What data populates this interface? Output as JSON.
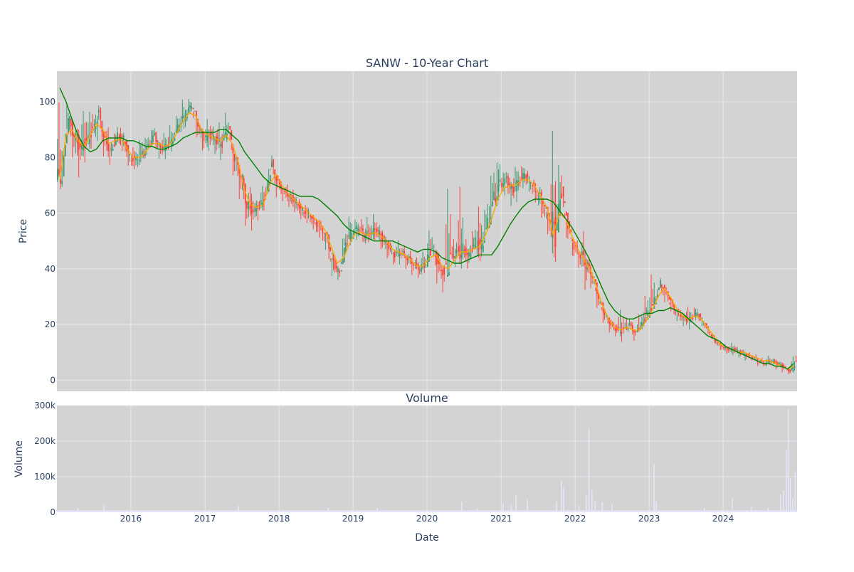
{
  "title": "SANW - 10-Year Chart",
  "colors": {
    "background": "#ffffff",
    "plot_bg": "#d3d3d3",
    "grid": "#eaeaf2",
    "up": "#3d9970",
    "down": "#ff4136",
    "ma_short": "#ffa500",
    "ma_long": "#008000",
    "volume": "#e6e6fa",
    "text": "#2a3f5f"
  },
  "chart_data": [
    {
      "type": "line",
      "subtype": "candlestick",
      "title": "SANW - 10-Year Chart",
      "xlabel": "",
      "ylabel": "Price",
      "xlim": [
        "2015-01-01",
        "2024-12-31"
      ],
      "ylim": [
        -4,
        111
      ],
      "yticks": [
        0,
        20,
        40,
        60,
        80,
        100
      ],
      "grid": true,
      "series": [
        {
          "role": "price",
          "x": [
            "2015-01",
            "2015-02",
            "2015-03",
            "2015-04",
            "2015-05",
            "2015-06",
            "2015-07",
            "2015-08",
            "2015-09",
            "2015-10",
            "2015-11",
            "2015-12",
            "2016-01",
            "2016-02",
            "2016-03",
            "2016-04",
            "2016-05",
            "2016-06",
            "2016-07",
            "2016-08",
            "2016-09",
            "2016-10",
            "2016-11",
            "2016-12",
            "2017-01",
            "2017-02",
            "2017-03",
            "2017-04",
            "2017-05",
            "2017-06",
            "2017-07",
            "2017-08",
            "2017-09",
            "2017-10",
            "2017-11",
            "2017-12",
            "2018-01",
            "2018-02",
            "2018-03",
            "2018-04",
            "2018-05",
            "2018-06",
            "2018-07",
            "2018-08",
            "2018-09",
            "2018-10",
            "2018-11",
            "2018-12",
            "2019-01",
            "2019-02",
            "2019-03",
            "2019-04",
            "2019-05",
            "2019-06",
            "2019-07",
            "2019-08",
            "2019-09",
            "2019-10",
            "2019-11",
            "2019-12",
            "2020-01",
            "2020-02",
            "2020-03",
            "2020-04",
            "2020-05",
            "2020-06",
            "2020-07",
            "2020-08",
            "2020-09",
            "2020-10",
            "2020-11",
            "2020-12",
            "2021-01",
            "2021-02",
            "2021-03",
            "2021-04",
            "2021-05",
            "2021-06",
            "2021-07",
            "2021-08",
            "2021-09",
            "2021-10",
            "2021-11",
            "2021-12",
            "2022-01",
            "2022-02",
            "2022-03",
            "2022-04",
            "2022-05",
            "2022-06",
            "2022-07",
            "2022-08",
            "2022-09",
            "2022-10",
            "2022-11",
            "2022-12",
            "2023-01",
            "2023-02",
            "2023-03",
            "2023-04",
            "2023-05",
            "2023-06",
            "2023-07",
            "2023-08",
            "2023-09",
            "2023-10",
            "2023-11",
            "2023-12",
            "2024-01",
            "2024-02",
            "2024-03",
            "2024-04",
            "2024-05",
            "2024-06",
            "2024-07",
            "2024-08",
            "2024-09",
            "2024-10",
            "2024-11",
            "2024-12"
          ],
          "close": [
            74,
            95,
            88,
            84,
            86,
            90,
            96,
            86,
            82,
            88,
            87,
            80,
            79,
            81,
            84,
            88,
            83,
            84,
            86,
            92,
            95,
            99,
            92,
            87,
            88,
            86,
            85,
            91,
            80,
            74,
            63,
            61,
            63,
            66,
            78,
            71,
            68,
            66,
            64,
            61,
            60,
            57,
            55,
            51,
            42,
            38,
            49,
            53,
            55,
            52,
            53,
            54,
            51,
            48,
            45,
            46,
            44,
            42,
            40,
            42,
            48,
            42,
            38,
            44,
            46,
            47,
            45,
            50,
            48,
            56,
            65,
            70,
            72,
            68,
            71,
            74,
            71,
            68,
            64,
            58,
            52,
            68,
            56,
            48,
            45,
            42,
            38,
            30,
            24,
            20,
            18,
            18,
            20,
            17,
            20,
            24,
            28,
            35,
            32,
            27,
            24,
            22,
            22,
            24,
            21,
            17,
            14,
            12,
            11,
            11,
            10,
            9,
            8,
            7,
            6,
            7,
            6,
            5,
            3,
            7
          ],
          "high": [
            98,
            99,
            95,
            92,
            99,
            100,
            100,
            95,
            91,
            92,
            90,
            86,
            84,
            88,
            89,
            92,
            88,
            89,
            92,
            97,
            101,
            102,
            96,
            91,
            93,
            91,
            92,
            98,
            86,
            79,
            75,
            70,
            66,
            72,
            83,
            77,
            72,
            70,
            68,
            65,
            63,
            60,
            59,
            55,
            47,
            44,
            56,
            60,
            58,
            58,
            58,
            59,
            56,
            52,
            49,
            50,
            48,
            46,
            44,
            47,
            57,
            50,
            44,
            75,
            52,
            68,
            50,
            56,
            62,
            67,
            80,
            82,
            76,
            74,
            78,
            78,
            75,
            72,
            70,
            62,
            87,
            82,
            62,
            53,
            50,
            52,
            44,
            35,
            28,
            24,
            22,
            26,
            24,
            21,
            25,
            32,
            40,
            37,
            35,
            30,
            27,
            25,
            26,
            27,
            24,
            20,
            17,
            14,
            13,
            13,
            12,
            11,
            10,
            9,
            8,
            9,
            8,
            7,
            5,
            11
          ],
          "low": [
            70,
            88,
            80,
            74,
            79,
            82,
            84,
            79,
            77,
            82,
            82,
            75,
            75,
            76,
            79,
            83,
            78,
            80,
            82,
            86,
            88,
            93,
            85,
            81,
            82,
            81,
            80,
            84,
            72,
            65,
            55,
            55,
            57,
            60,
            70,
            65,
            64,
            62,
            60,
            57,
            56,
            53,
            50,
            45,
            34,
            35,
            44,
            47,
            49,
            48,
            48,
            49,
            46,
            43,
            41,
            42,
            40,
            38,
            37,
            38,
            42,
            35,
            32,
            38,
            41,
            42,
            40,
            44,
            42,
            48,
            56,
            62,
            66,
            62,
            64,
            68,
            66,
            62,
            56,
            50,
            40,
            55,
            48,
            43,
            40,
            33,
            33,
            25,
            20,
            17,
            16,
            15,
            17,
            14,
            17,
            21,
            25,
            30,
            27,
            23,
            20,
            19,
            19,
            21,
            18,
            15,
            12,
            10,
            9,
            9,
            8,
            7,
            7,
            5,
            5,
            5,
            4,
            3,
            2,
            2
          ]
        },
        {
          "role": "ma_short",
          "name": "",
          "values": [
            72,
            88,
            90,
            86,
            84,
            88,
            92,
            90,
            85,
            86,
            87,
            83,
            80,
            80,
            82,
            85,
            85,
            84,
            85,
            89,
            93,
            96,
            95,
            90,
            88,
            87,
            86,
            88,
            85,
            78,
            68,
            63,
            62,
            63,
            70,
            74,
            70,
            67,
            65,
            63,
            61,
            59,
            57,
            54,
            48,
            42,
            44,
            49,
            53,
            53,
            52,
            53,
            52,
            50,
            47,
            46,
            45,
            43,
            41,
            41,
            44,
            45,
            41,
            40,
            43,
            46,
            46,
            47,
            48,
            52,
            58,
            65,
            69,
            70,
            70,
            72,
            72,
            70,
            66,
            62,
            52,
            60,
            58,
            52,
            47,
            43,
            40,
            34,
            27,
            22,
            19,
            18,
            19,
            18,
            18,
            21,
            25,
            30,
            33,
            30,
            26,
            23,
            22,
            23,
            22,
            19,
            16,
            13,
            12,
            11,
            10,
            10,
            9,
            8,
            7,
            7,
            6,
            5,
            4,
            5
          ]
        },
        {
          "role": "ma_long",
          "name": "",
          "values": [
            105,
            100,
            94,
            88,
            84,
            82,
            83,
            86,
            87,
            87,
            87,
            86,
            86,
            85,
            84,
            84,
            83,
            83,
            84,
            85,
            87,
            88,
            89,
            89,
            89,
            89,
            90,
            90,
            88,
            86,
            82,
            79,
            76,
            73,
            71,
            70,
            69,
            68,
            67,
            66,
            66,
            66,
            65,
            63,
            61,
            59,
            56,
            54,
            53,
            52,
            51,
            50,
            50,
            50,
            50,
            49,
            48,
            47,
            46,
            47,
            47,
            46,
            44,
            43,
            42,
            42,
            43,
            44,
            45,
            45,
            45,
            48,
            52,
            56,
            59,
            62,
            64,
            65,
            65,
            65,
            64,
            61,
            58,
            55,
            51,
            47,
            43,
            38,
            33,
            28,
            25,
            23,
            22,
            22,
            23,
            24,
            24,
            25,
            25,
            26,
            25,
            24,
            22,
            20,
            18,
            16,
            15,
            14,
            12,
            11,
            10,
            9,
            8,
            7,
            6,
            6,
            5,
            5,
            4,
            6
          ]
        }
      ]
    },
    {
      "type": "bar",
      "title": "Volume",
      "xlabel": "Date",
      "ylabel": "Volume",
      "xticks": [
        "2016",
        "2017",
        "2018",
        "2019",
        "2020",
        "2021",
        "2022",
        "2023",
        "2024"
      ],
      "ytick_labels": [
        "0",
        "100k",
        "200k",
        "300k"
      ],
      "yticks": [
        0,
        100000,
        200000,
        300000
      ],
      "ylim": [
        0,
        300000
      ],
      "grid": true,
      "baseline": 5000,
      "spikes": [
        {
          "x": "2015-04-15",
          "value": 12000
        },
        {
          "x": "2015-08-20",
          "value": 22000
        },
        {
          "x": "2017-06-15",
          "value": 18000
        },
        {
          "x": "2018-09-01",
          "value": 14000
        },
        {
          "x": "2019-05-01",
          "value": 12000
        },
        {
          "x": "2020-06-20",
          "value": 30000
        },
        {
          "x": "2020-09-05",
          "value": 10000
        },
        {
          "x": "2021-01-10",
          "value": 25000
        },
        {
          "x": "2021-02-20",
          "value": 22000
        },
        {
          "x": "2021-03-15",
          "value": 47000
        },
        {
          "x": "2021-05-10",
          "value": 35000
        },
        {
          "x": "2021-10-01",
          "value": 30000
        },
        {
          "x": "2021-10-25",
          "value": 90000
        },
        {
          "x": "2021-11-05",
          "value": 68000
        },
        {
          "x": "2022-01-20",
          "value": 18000
        },
        {
          "x": "2022-02-25",
          "value": 48000
        },
        {
          "x": "2022-03-10",
          "value": 235000
        },
        {
          "x": "2022-03-25",
          "value": 62000
        },
        {
          "x": "2022-04-10",
          "value": 30000
        },
        {
          "x": "2022-05-15",
          "value": 28000
        },
        {
          "x": "2022-07-01",
          "value": 22000
        },
        {
          "x": "2023-01-25",
          "value": 135000
        },
        {
          "x": "2023-02-05",
          "value": 30000
        },
        {
          "x": "2023-10-01",
          "value": 12000
        },
        {
          "x": "2024-02-15",
          "value": 38000
        },
        {
          "x": "2024-05-20",
          "value": 15000
        },
        {
          "x": "2024-08-10",
          "value": 12000
        },
        {
          "x": "2024-10-10",
          "value": 50000
        },
        {
          "x": "2024-10-25",
          "value": 60000
        },
        {
          "x": "2024-11-08",
          "value": 175000
        },
        {
          "x": "2024-11-18",
          "value": 290000
        },
        {
          "x": "2024-11-28",
          "value": 95000
        },
        {
          "x": "2024-12-10",
          "value": 40000
        },
        {
          "x": "2024-12-22",
          "value": 115000
        }
      ]
    }
  ]
}
